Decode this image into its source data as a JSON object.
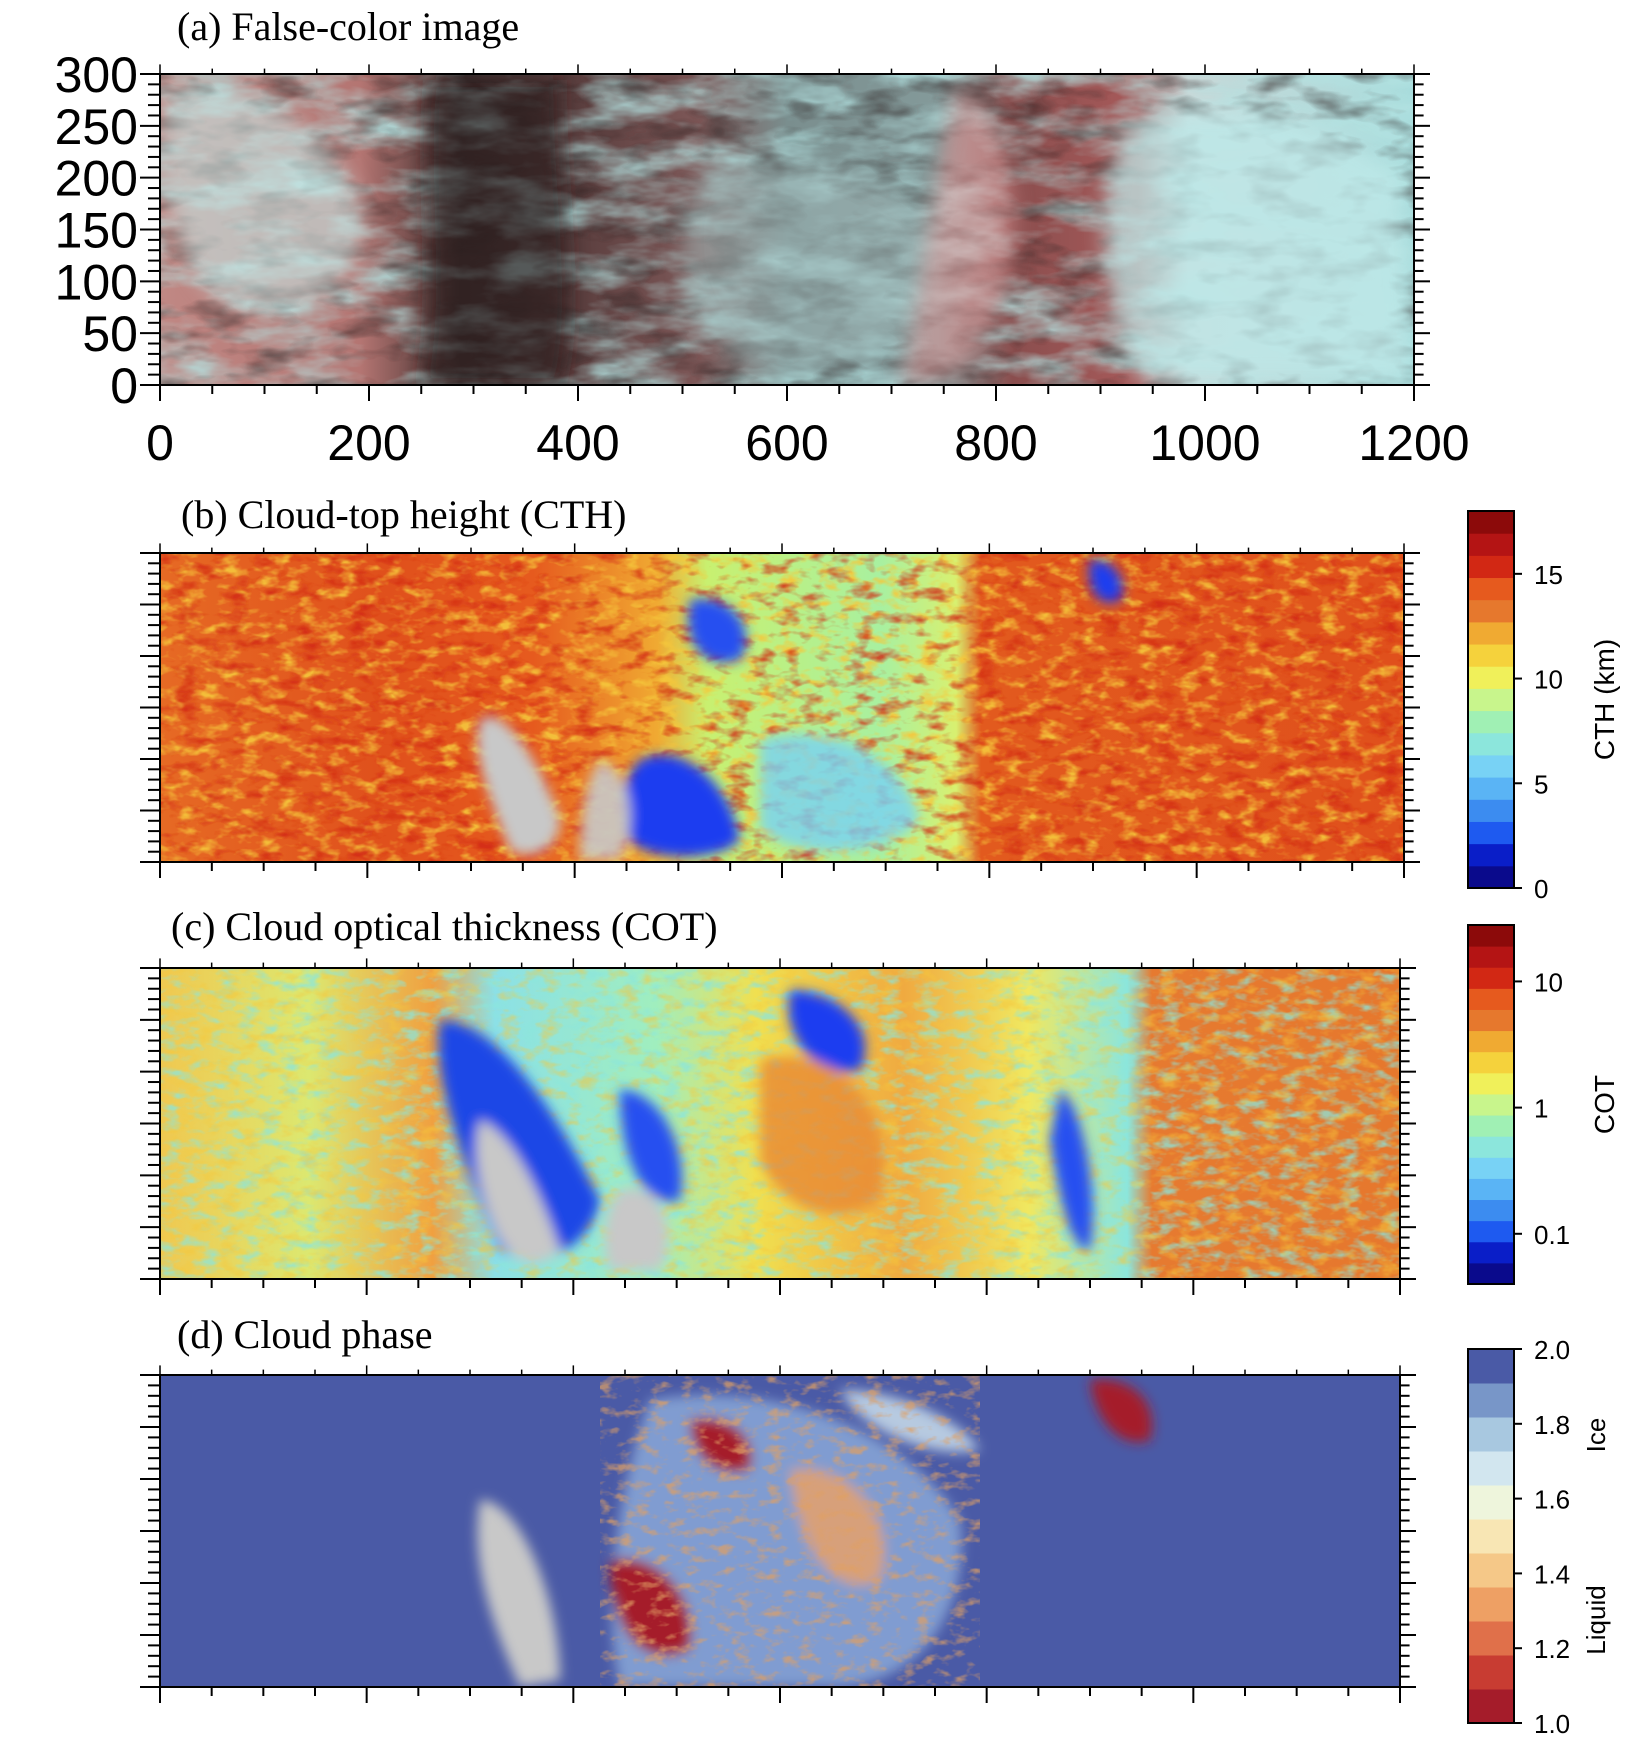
{
  "chart_data": [
    {
      "type": "heatmap",
      "title": "(a) False-color image",
      "xticks": [
        "0",
        "200",
        "400",
        "600",
        "800",
        "1000",
        "1200"
      ],
      "yticks": [
        "0",
        "50",
        "100",
        "150",
        "200",
        "250",
        "300"
      ],
      "xlim": [
        0,
        1200
      ],
      "ylim": [
        0,
        300
      ],
      "colors": {
        "ice_tone": "#b3e3e2",
        "mid_tone": "#b06a68",
        "dark_tone": "#3a2a2a",
        "pink_tone": "#e89898"
      }
    },
    {
      "type": "heatmap",
      "title": "(b) Cloud-top height (CTH)",
      "colorbar": {
        "label": "CTH (km)",
        "ticks": [
          "0",
          "5",
          "10",
          "15"
        ],
        "range": [
          0,
          18
        ],
        "colors": [
          "#0a0a8c",
          "#0a1ec8",
          "#1e5af0",
          "#3c8cf0",
          "#5ab4f5",
          "#78d2f5",
          "#8ce6dc",
          "#a0f0b4",
          "#c8f58c",
          "#f0f05a",
          "#f5d23c",
          "#f0aa32",
          "#e6782d",
          "#e65a1e",
          "#d22814",
          "#b41414",
          "#8c0a0a"
        ]
      }
    },
    {
      "type": "heatmap",
      "title": "(c) Cloud optical thickness (COT)",
      "colorbar": {
        "label": "COT",
        "ticks": [
          "0.1",
          "1",
          "10"
        ],
        "scale": "log",
        "colors": [
          "#0a0a8c",
          "#0a1ec8",
          "#1e5af0",
          "#3c8cf0",
          "#5ab4f5",
          "#78d2f5",
          "#8ce6dc",
          "#a0f0b4",
          "#c8f58c",
          "#f0f05a",
          "#f5d23c",
          "#f0aa32",
          "#e6782d",
          "#e65a1e",
          "#d22814",
          "#b41414",
          "#8c0a0a"
        ]
      }
    },
    {
      "type": "heatmap",
      "title": "(d) Cloud phase",
      "colorbar": {
        "ticks": [
          "1.0",
          "1.2",
          "1.4",
          "1.6",
          "1.8",
          "2.0"
        ],
        "range": [
          1.0,
          2.0
        ],
        "class_labels": [
          "Liquid",
          "Ice"
        ],
        "colors": [
          "#a51c2a",
          "#c83c32",
          "#e0704a",
          "#eea064",
          "#f5c888",
          "#f8e6b4",
          "#eef5dc",
          "#d2e6ef",
          "#a8c8e0",
          "#7896c8",
          "#4a5aa6"
        ]
      }
    }
  ]
}
